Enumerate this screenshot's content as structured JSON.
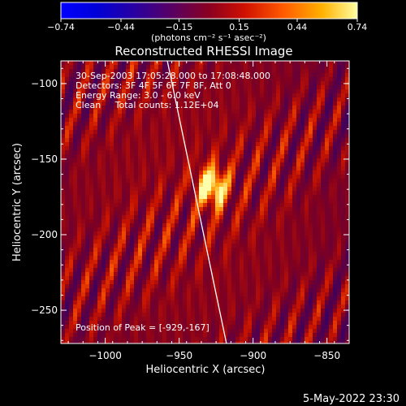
{
  "chart_data": {
    "type": "heatmap",
    "title": "Reconstructed RHESSI Image",
    "xlabel": "Heliocentric X (arcsec)",
    "ylabel": "Heliocentric Y (arcsec)",
    "xlim": [
      -1030,
      -835
    ],
    "ylim": [
      -272,
      -85
    ],
    "xticks": [
      {
        "value": -1000,
        "label": "−1000"
      },
      {
        "value": -950,
        "label": "−950"
      },
      {
        "value": -900,
        "label": "−900"
      },
      {
        "value": -850,
        "label": "−850"
      }
    ],
    "yticks": [
      {
        "value": -100,
        "label": "−100"
      },
      {
        "value": -150,
        "label": "−150"
      },
      {
        "value": -200,
        "label": "−200"
      },
      {
        "value": -250,
        "label": "−250"
      }
    ],
    "colorbar": {
      "range": [
        -0.74,
        0.74
      ],
      "ticks": [
        {
          "value": -0.74,
          "label": "−0.74"
        },
        {
          "value": -0.44,
          "label": "−0.44"
        },
        {
          "value": -0.15,
          "label": "−0.15"
        },
        {
          "value": 0.15,
          "label": "0.15"
        },
        {
          "value": 0.44,
          "label": "0.44"
        },
        {
          "value": 0.74,
          "label": "0.74"
        }
      ],
      "unit_label": "(photons cm⁻² s⁻¹ asec⁻²)"
    },
    "peak": {
      "x": -929,
      "y": -167
    },
    "limb_line": {
      "x1": -958,
      "y1": -85,
      "x2": -918,
      "y2": -272
    },
    "annotations": [
      "30-Sep-2003 17:05:28.000 to 17:08:48.000",
      "Detectors: 3F 4F 5F 6F 7F 8F, Att 0",
      "Energy Range: 3.0 - 6.0 keV",
      "Clean     Total counts: 1.12E+04"
    ],
    "peak_label": "Position of Peak = [-929,-167]"
  },
  "footer": {
    "date": "5-May-2022 23:30"
  }
}
